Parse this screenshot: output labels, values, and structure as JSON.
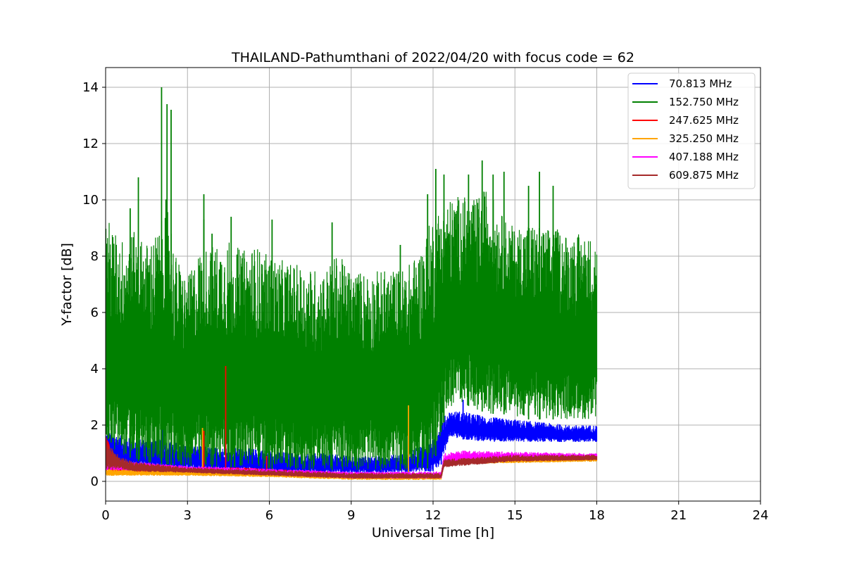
{
  "chart_data": {
    "type": "line",
    "title": "THAILAND-Pathumthani of 2022/04/20 with focus code = 62",
    "xlabel": "Universal Time [h]",
    "ylabel": "Y-factor [dB]",
    "xlim": [
      0,
      24
    ],
    "ylim": [
      -0.7,
      14.7
    ],
    "xticks": [
      0,
      3,
      6,
      9,
      12,
      15,
      18,
      21,
      24
    ],
    "yticks": [
      0,
      2,
      4,
      6,
      8,
      10,
      12,
      14
    ],
    "grid": true,
    "legend_position": "top-right",
    "series": [
      {
        "name": "  70.813 MHz",
        "color": "#0000ff",
        "band": {
          "x": [
            0,
            1,
            2,
            3,
            4,
            5,
            6,
            7,
            8,
            9,
            10,
            11,
            12,
            12.3,
            12.6,
            13,
            14,
            15,
            16,
            17,
            18
          ],
          "lo": [
            0.5,
            0.5,
            0.45,
            0.4,
            0.4,
            0.35,
            0.3,
            0.3,
            0.3,
            0.3,
            0.3,
            0.3,
            0.35,
            0.6,
            1.6,
            1.5,
            1.4,
            1.4,
            1.4,
            1.4,
            1.4
          ],
          "hi": [
            1.8,
            1.5,
            1.5,
            1.3,
            1.2,
            1.2,
            1.1,
            1.0,
            1.0,
            0.9,
            0.9,
            1.0,
            1.5,
            2.2,
            2.5,
            2.5,
            2.3,
            2.2,
            2.1,
            2.0,
            2.0
          ]
        },
        "spikes": [
          [
            0.1,
            2.0
          ],
          [
            2.1,
            3.0
          ],
          [
            3.6,
            2.3
          ],
          [
            8.2,
            1.4
          ],
          [
            11.9,
            1.8
          ],
          [
            12.3,
            3.0
          ],
          [
            13.1,
            2.9
          ]
        ]
      },
      {
        "name": "152.750 MHz",
        "color": "#008000",
        "band": {
          "x": [
            0,
            0.5,
            1,
            1.5,
            2,
            2.3,
            2.5,
            3,
            3.5,
            4,
            4.5,
            5,
            5.5,
            6,
            7,
            8,
            8.5,
            9,
            10,
            11,
            11.5,
            12,
            12.5,
            13,
            13.5,
            14,
            14.5,
            15,
            15.5,
            16,
            16.5,
            17,
            17.5,
            18
          ],
          "lo": [
            1.2,
            1.0,
            0.8,
            0.6,
            0.6,
            0.6,
            0.5,
            0.5,
            0.5,
            0.5,
            0.5,
            0.5,
            0.5,
            0.4,
            0.4,
            0.4,
            0.4,
            0.4,
            0.4,
            0.4,
            0.4,
            0.5,
            2.5,
            2.8,
            2.6,
            2.4,
            2.4,
            2.3,
            2.2,
            2.2,
            2.2,
            2.2,
            2.2,
            2.2
          ],
          "hi": [
            9.5,
            8.6,
            8.9,
            8.5,
            9.0,
            10.5,
            8.2,
            7.2,
            8.4,
            8.4,
            8.6,
            8.2,
            8.4,
            8.0,
            7.7,
            7.5,
            8.1,
            7.5,
            7.5,
            7.6,
            8.2,
            9.5,
            10.0,
            10.2,
            10.0,
            10.5,
            9.5,
            9.0,
            9.3,
            9.0,
            9.0,
            8.8,
            8.8,
            8.6
          ]
        },
        "spikes": [
          [
            0.9,
            9.7
          ],
          [
            1.2,
            10.8
          ],
          [
            2.05,
            14.0
          ],
          [
            2.25,
            13.4
          ],
          [
            2.4,
            13.2
          ],
          [
            3.6,
            9.3
          ],
          [
            3.6,
            10.2
          ],
          [
            3.9,
            8.8
          ],
          [
            4.6,
            9.4
          ],
          [
            6.1,
            9.3
          ],
          [
            8.3,
            9.2
          ],
          [
            10.8,
            8.4
          ],
          [
            11.8,
            10.2
          ],
          [
            12.1,
            11.1
          ],
          [
            12.4,
            10.9
          ],
          [
            13.3,
            10.9
          ],
          [
            13.8,
            11.4
          ],
          [
            14.2,
            10.9
          ],
          [
            14.6,
            11.0
          ],
          [
            15.5,
            10.5
          ],
          [
            15.9,
            11.0
          ],
          [
            16.4,
            10.5
          ]
        ]
      },
      {
        "name": "247.625 MHz",
        "color": "#ff0000",
        "band": {
          "x": [
            0,
            0.3,
            1,
            3,
            4,
            5,
            6,
            7,
            8,
            9,
            10,
            11,
            12.3
          ],
          "lo": [
            0.3,
            0.3,
            0.3,
            0.3,
            0.3,
            0.3,
            0.25,
            0.2,
            0.2,
            0.2,
            0.2,
            0.2,
            0.2
          ],
          "hi": [
            1.7,
            0.9,
            0.6,
            0.5,
            0.5,
            0.5,
            0.45,
            0.4,
            0.35,
            0.3,
            0.3,
            0.3,
            0.3
          ]
        },
        "spikes": [
          [
            3.6,
            1.8
          ],
          [
            4.4,
            4.1
          ],
          [
            5.9,
            0.9
          ]
        ]
      },
      {
        "name": "325.250 MHz",
        "color": "#ffa500",
        "band": {
          "x": [
            0,
            3,
            6,
            9,
            12.3,
            12.4,
            15,
            18
          ],
          "lo": [
            0.2,
            0.2,
            0.15,
            0.05,
            0.05,
            0.6,
            0.65,
            0.7
          ],
          "hi": [
            0.45,
            0.4,
            0.35,
            0.25,
            0.25,
            0.8,
            0.85,
            0.9
          ]
        },
        "spikes": [
          [
            3.55,
            1.9
          ],
          [
            11.1,
            2.7
          ]
        ]
      },
      {
        "name": "407.188 MHz",
        "color": "#ff00ff",
        "band": {
          "x": [
            0,
            3,
            6,
            9,
            12.3,
            12.4,
            13,
            15,
            18
          ],
          "lo": [
            0.4,
            0.35,
            0.25,
            0.1,
            0.1,
            0.55,
            0.7,
            0.75,
            0.8
          ],
          "hi": [
            0.8,
            0.55,
            0.45,
            0.35,
            0.35,
            1.0,
            1.1,
            1.05,
            1.0
          ]
        },
        "spikes": []
      },
      {
        "name": "609.875 MHz",
        "color": "#a52a2a",
        "band": {
          "x": [
            0,
            0.5,
            1,
            3,
            6,
            9,
            12.3,
            12.4,
            15,
            18
          ],
          "lo": [
            0.4,
            0.45,
            0.35,
            0.3,
            0.2,
            0.1,
            0.1,
            0.5,
            0.7,
            0.75
          ],
          "hi": [
            1.5,
            0.9,
            0.7,
            0.5,
            0.4,
            0.3,
            0.3,
            0.8,
            0.95,
            0.95
          ]
        },
        "spikes": []
      }
    ]
  }
}
